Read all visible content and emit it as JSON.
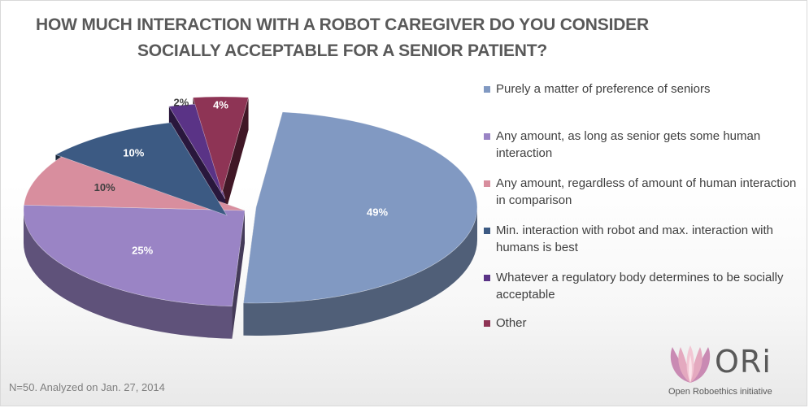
{
  "chart_data": {
    "type": "pie",
    "title": "HOW MUCH INTERACTION WITH A ROBOT CAREGIVER DO YOU CONSIDER SOCIALLY ACCEPTABLE FOR A SENIOR PATIENT?",
    "legend_position": "right",
    "slices": [
      {
        "label": "Purely a matter of preference of seniors",
        "value": 49,
        "value_label": "49%",
        "color": "#8199c2"
      },
      {
        "label": "Any amount, as long as senior gets some human interaction",
        "value": 25,
        "value_label": "25%",
        "color": "#9a84c5"
      },
      {
        "label": "Any amount, regardless of amount of human interaction in comparison",
        "value": 10,
        "value_label": "10%",
        "color": "#d88e9e"
      },
      {
        "label": "Min. interaction with robot and max. interaction with humans is best",
        "value": 10,
        "value_label": "10%",
        "color": "#3c5a83"
      },
      {
        "label": "Whatever a regulatory body determines to be socially acceptable",
        "value": 2,
        "value_label": "2%",
        "color": "#5a3386"
      },
      {
        "label": "Other",
        "value": 4,
        "value_label": "4%",
        "color": "#8e3455"
      }
    ]
  },
  "footnote": "N=50. Analyzed on Jan. 27, 2014",
  "logo": {
    "word": "ORi",
    "subtitle": "Open Roboethics initiative"
  }
}
